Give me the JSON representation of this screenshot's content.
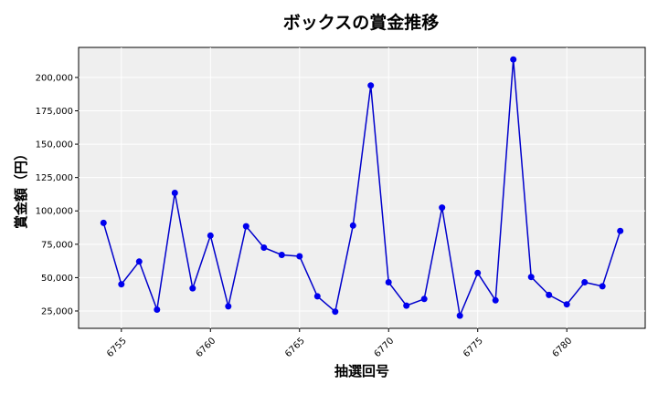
{
  "chart_data": {
    "type": "line",
    "title": "ボックスの賞金推移",
    "xlabel": "抽選回号",
    "ylabel": "賞金額（円）",
    "xlim": [
      6752.6,
      6784.4
    ],
    "ylim": [
      12000,
      222500
    ],
    "xticks": [
      6755,
      6760,
      6765,
      6770,
      6775,
      6780
    ],
    "yticks": [
      25000,
      50000,
      75000,
      100000,
      125000,
      150000,
      175000,
      200000
    ],
    "ytick_labels": [
      "25,000",
      "50,000",
      "75,000",
      "100,000",
      "125,000",
      "150,000",
      "175,000",
      "200,000"
    ],
    "grid": true,
    "colors": {
      "line": "#0000cc",
      "marker": "#0000ee",
      "background": "#efefef"
    },
    "series": [
      {
        "x": [
          6754,
          6755,
          6756,
          6757,
          6758,
          6759,
          6760,
          6761,
          6762,
          6763,
          6764,
          6765,
          6766,
          6767,
          6768,
          6769,
          6770,
          6771,
          6772,
          6773,
          6774,
          6775,
          6776,
          6777,
          6778,
          6779,
          6780,
          6781,
          6782,
          6783
        ],
        "values": [
          91000,
          45000,
          62000,
          26000,
          113500,
          42000,
          81500,
          28500,
          88500,
          72500,
          67000,
          66000,
          36000,
          24500,
          89000,
          194000,
          46500,
          29000,
          34000,
          102500,
          21500,
          53500,
          33000,
          213500,
          50500,
          37000,
          30000,
          46500,
          43500,
          85000
        ]
      }
    ]
  }
}
